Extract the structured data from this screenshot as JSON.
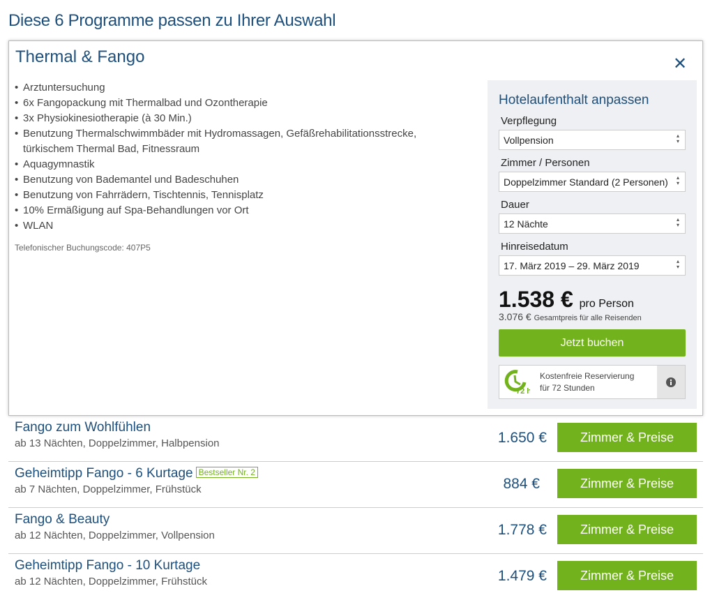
{
  "heading": "Diese 6 Programme passen zu Ihrer Auswahl",
  "detail": {
    "title": "Thermal & Fango",
    "close_icon": "close-icon",
    "features": [
      "Arztuntersuchung",
      "6x Fangopackung mit Thermalbad und Ozontherapie",
      "3x Physiokinesiotherapie (à 30 Min.)",
      "Benutzung Thermalschwimmbäder mit Hydromassagen, Gefäßrehabilitationsstrecke, türkischem Thermal Bad, Fitnessraum",
      "Aquagymnastik",
      "Benutzung von Bademantel und Badeschuhen",
      "Benutzung von Fahrrädern, Tischtennis, Tennisplatz",
      "10% Ermäßigung auf Spa-Behandlungen vor Ort",
      "WLAN"
    ],
    "booking_code": "Telefonischer Buchungscode: 407P5",
    "panel": {
      "title": "Hotelaufenthalt anpassen",
      "verpflegung_label": "Verpflegung",
      "verpflegung": "Vollpension",
      "zimmer_label": "Zimmer / Personen",
      "zimmer": "Doppelzimmer Standard (2 Personen)",
      "dauer_label": "Dauer",
      "dauer": "12 Nächte",
      "datum_label": "Hinreisedatum",
      "datum": "17. März 2019 – 29. März 2019",
      "price": "1.538 €",
      "price_suffix": "pro Person",
      "total": "3.076 €",
      "total_suffix": "Gesamtpreis für alle Reisenden",
      "book": "Jetzt buchen",
      "res_line1": "Kostenfreie Reservierung",
      "res_line2": "für 72 Stunden",
      "res_badge": "72 h"
    }
  },
  "programs": [
    {
      "title": "Fango zum Wohlfühlen",
      "badge": "",
      "sub": "ab 13 Nächten, Doppelzimmer, Halbpension",
      "price": "1.650 €",
      "button": "Zimmer & Preise"
    },
    {
      "title": "Geheimtipp Fango - 6 Kurtage",
      "badge": "Bestseller Nr. 2",
      "sub": "ab 7 Nächten, Doppelzimmer, Frühstück",
      "price": "884 €",
      "button": "Zimmer & Preise"
    },
    {
      "title": "Fango & Beauty",
      "badge": "",
      "sub": "ab 12 Nächten, Doppelzimmer, Vollpension",
      "price": "1.778 €",
      "button": "Zimmer & Preise"
    },
    {
      "title": "Geheimtipp Fango - 10 Kurtage",
      "badge": "",
      "sub": "ab 12 Nächten, Doppelzimmer, Frühstück",
      "price": "1.479 €",
      "button": "Zimmer & Preise"
    }
  ]
}
